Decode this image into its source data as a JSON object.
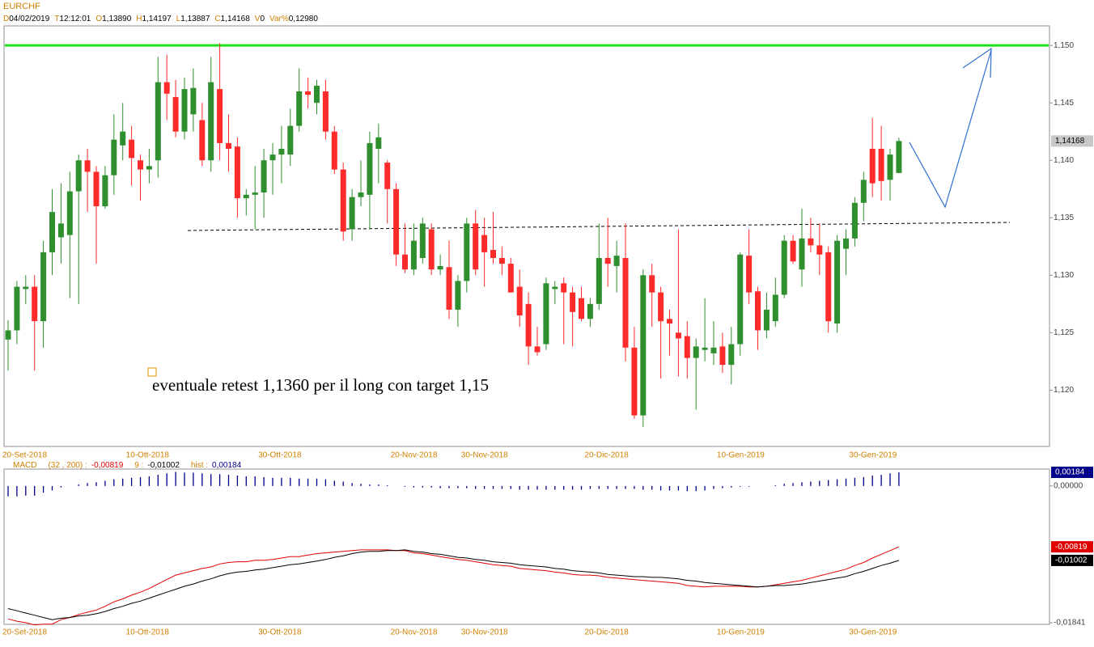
{
  "chart_data": [
    {
      "type": "candlestick",
      "title": "EURCHF",
      "header": [
        {
          "key": "D",
          "value": "04/02/2019"
        },
        {
          "key": "T",
          "value": "12:12:01"
        },
        {
          "key": "O",
          "value": "1,13890"
        },
        {
          "key": "H",
          "value": "1,14197"
        },
        {
          "key": "L",
          "value": "1,13887"
        },
        {
          "key": "C",
          "value": "1,14168"
        },
        {
          "key": "V",
          "value": "0"
        },
        {
          "key": "Var%",
          "value": "0,12980"
        }
      ],
      "annotation": "eventuale retest 1,1360 per il long con target 1,15",
      "categories": [
        "20-Set-2018",
        null,
        null,
        null,
        null,
        null,
        null,
        null,
        null,
        null,
        null,
        null,
        null,
        null,
        "10-Ott-2018",
        null,
        null,
        null,
        null,
        null,
        null,
        null,
        null,
        null,
        null,
        null,
        null,
        null,
        null,
        "30-Ott-2018",
        null,
        null,
        null,
        null,
        null,
        null,
        null,
        null,
        null,
        null,
        null,
        null,
        null,
        null,
        "20-Nov-2018",
        null,
        null,
        null,
        null,
        null,
        null,
        null,
        "30-Nov-2018",
        null,
        null,
        null,
        null,
        null,
        null,
        null,
        null,
        null,
        null,
        null,
        null,
        null,
        "20-Dic-2018",
        null,
        null,
        null,
        null,
        null,
        null,
        null,
        null,
        null,
        null,
        null,
        null,
        null,
        null,
        "10-Gen-2019",
        null,
        null,
        null,
        null,
        null,
        null,
        null,
        null,
        null,
        null,
        null,
        null,
        null,
        null,
        "30-Gen-2019",
        null,
        null,
        null,
        null,
        null
      ],
      "open": [
        1.1244,
        1.1252,
        1.1288,
        1.129,
        1.126,
        1.132,
        1.1333,
        1.1335,
        1.1373,
        1.14,
        1.139,
        1.136,
        1.1387,
        1.1413,
        1.1418,
        1.14,
        1.1392,
        1.14,
        1.1468,
        1.1455,
        1.1425,
        1.144,
        1.1435,
        1.14,
        1.1462,
        1.1415,
        1.1412,
        1.1367,
        1.137,
        1.1372,
        1.14,
        1.1405,
        1.1405,
        1.143,
        1.146,
        1.145,
        1.146,
        1.1425,
        1.1392,
        1.134,
        1.1368,
        1.137,
        1.141,
        1.1398,
        1.1375,
        1.1318,
        1.1305,
        1.1315,
        1.134,
        1.1305,
        1.1307,
        1.127,
        1.1295,
        1.1345,
        1.1335,
        1.1322,
        1.1315,
        1.131,
        1.129,
        1.1275,
        1.1238,
        1.124,
        1.1288,
        1.1293,
        1.1285,
        1.128,
        1.1262,
        1.1275,
        1.1315,
        1.1308,
        1.1315,
        1.1237,
        1.1178,
        1.13,
        1.1285,
        1.1262,
        1.125,
        1.1247,
        1.1228,
        1.1235,
        1.1232,
        1.1238,
        1.1222,
        1.124,
        1.1317,
        1.1286,
        1.1252,
        1.126,
        1.1283,
        1.133,
        1.1305,
        1.1332,
        1.1326,
        1.132,
        1.1258,
        1.1323,
        1.1332,
        1.1363,
        1.141,
        1.141,
        1.1383,
        1.1389
      ],
      "high": [
        1.1261,
        1.1295,
        1.13,
        1.13,
        1.133,
        1.1375,
        1.138,
        1.139,
        1.1405,
        1.141,
        1.1395,
        1.1395,
        1.144,
        1.145,
        1.143,
        1.1405,
        1.141,
        1.149,
        1.1492,
        1.147,
        1.1472,
        1.148,
        1.145,
        1.149,
        1.1502,
        1.144,
        1.142,
        1.1375,
        1.1395,
        1.141,
        1.1415,
        1.143,
        1.1445,
        1.148,
        1.1472,
        1.147,
        1.147,
        1.143,
        1.1398,
        1.1375,
        1.14,
        1.1425,
        1.1432,
        1.14,
        1.138,
        1.1345,
        1.1345,
        1.135,
        1.1345,
        1.1318,
        1.133,
        1.13,
        1.135,
        1.1357,
        1.135,
        1.1355,
        1.1325,
        1.1315,
        1.1305,
        1.1285,
        1.1255,
        1.1298,
        1.1295,
        1.1298,
        1.129,
        1.129,
        1.128,
        1.1345,
        1.135,
        1.133,
        1.1345,
        1.1255,
        1.1305,
        1.131,
        1.129,
        1.127,
        1.134,
        1.126,
        1.1245,
        1.128,
        1.126,
        1.125,
        1.1255,
        1.132,
        1.134,
        1.129,
        1.1285,
        1.1298,
        1.1335,
        1.1335,
        1.1358,
        1.135,
        1.1345,
        1.1325,
        1.1335,
        1.134,
        1.1368,
        1.139,
        1.1437,
        1.143,
        1.141,
        1.14197
      ],
      "low": [
        1.1217,
        1.124,
        1.1275,
        1.1217,
        1.1237,
        1.13,
        1.131,
        1.128,
        1.1275,
        1.1355,
        1.131,
        1.1358,
        1.137,
        1.14,
        1.1378,
        1.1365,
        1.138,
        1.1385,
        1.1435,
        1.142,
        1.1418,
        1.1425,
        1.1395,
        1.139,
        1.14,
        1.139,
        1.135,
        1.1352,
        1.134,
        1.135,
        1.137,
        1.138,
        1.1395,
        1.1425,
        1.1445,
        1.144,
        1.1418,
        1.1388,
        1.133,
        1.133,
        1.136,
        1.134,
        1.138,
        1.1345,
        1.1308,
        1.1302,
        1.13,
        1.131,
        1.13,
        1.13,
        1.1262,
        1.1255,
        1.1285,
        1.13,
        1.129,
        1.131,
        1.13,
        1.1285,
        1.1255,
        1.1222,
        1.123,
        1.1235,
        1.1275,
        1.124,
        1.1238,
        1.126,
        1.1255,
        1.127,
        1.129,
        1.1285,
        1.1225,
        1.1175,
        1.1168,
        1.1255,
        1.121,
        1.123,
        1.1212,
        1.121,
        1.1183,
        1.1225,
        1.1222,
        1.1215,
        1.1205,
        1.123,
        1.1275,
        1.1235,
        1.1245,
        1.1255,
        1.128,
        1.131,
        1.129,
        1.132,
        1.13,
        1.125,
        1.125,
        1.13,
        1.1325,
        1.1347,
        1.1368,
        1.1365,
        1.1365,
        1.13887
      ],
      "close": [
        1.1252,
        1.129,
        1.129,
        1.126,
        1.132,
        1.1355,
        1.1345,
        1.1373,
        1.14,
        1.139,
        1.136,
        1.1387,
        1.1418,
        1.1425,
        1.1402,
        1.1392,
        1.1395,
        1.1468,
        1.1458,
        1.1425,
        1.1462,
        1.1463,
        1.14,
        1.1468,
        1.1415,
        1.141,
        1.1367,
        1.137,
        1.1372,
        1.14,
        1.1405,
        1.141,
        1.143,
        1.146,
        1.1457,
        1.1465,
        1.1425,
        1.1392,
        1.1338,
        1.1368,
        1.1372,
        1.1415,
        1.142,
        1.1375,
        1.1318,
        1.1305,
        1.133,
        1.1345,
        1.1305,
        1.1308,
        1.127,
        1.1295,
        1.1345,
        1.1305,
        1.132,
        1.1315,
        1.131,
        1.1285,
        1.1265,
        1.1238,
        1.1233,
        1.1293,
        1.129,
        1.1285,
        1.1268,
        1.1262,
        1.1275,
        1.1315,
        1.131,
        1.1317,
        1.1237,
        1.1178,
        1.13,
        1.1285,
        1.126,
        1.1258,
        1.1245,
        1.1228,
        1.1238,
        1.1237,
        1.1237,
        1.1222,
        1.124,
        1.1318,
        1.1285,
        1.1252,
        1.127,
        1.1283,
        1.133,
        1.1312,
        1.1332,
        1.1326,
        1.1318,
        1.126,
        1.133,
        1.1332,
        1.1363,
        1.1383,
        1.138,
        1.1382,
        1.1405,
        1.14168
      ],
      "last_label": "1,14168",
      "up_color": "#2f8f2f",
      "down_color": "#ff2a2a",
      "hline": {
        "value": 1.15,
        "color": "#1fe01f"
      },
      "ylim": [
        1.1151,
        1.1517
      ],
      "yticks": [
        {
          "value": 1.15,
          "label": "1,150"
        },
        {
          "value": 1.145,
          "label": "1,145"
        },
        {
          "value": 1.14,
          "label": "1,140"
        },
        {
          "value": 1.135,
          "label": "1,135"
        },
        {
          "value": 1.13,
          "label": "1,130"
        },
        {
          "value": 1.125,
          "label": "1,125"
        },
        {
          "value": 1.12,
          "label": "1,120"
        }
      ]
    },
    {
      "type": "macd",
      "title": "MACD",
      "series": [
        {
          "name": "(32 , 200) :",
          "color": "#e00000",
          "value_label": "-0,00819",
          "values": [
            -0.0179,
            -0.0182,
            -0.0184,
            -0.0187,
            -0.0186,
            -0.0186,
            -0.018,
            -0.0177,
            -0.0173,
            -0.017,
            -0.0167,
            -0.0162,
            -0.0156,
            -0.0152,
            -0.0147,
            -0.0143,
            -0.0138,
            -0.0132,
            -0.0126,
            -0.012,
            -0.0117,
            -0.0114,
            -0.0111,
            -0.0109,
            -0.0105,
            -0.0103,
            -0.0102,
            -0.0102,
            -0.01,
            -0.01,
            -0.0099,
            -0.0097,
            -0.0095,
            -0.0095,
            -0.0093,
            -0.0091,
            -0.009,
            -0.0089,
            -0.0088,
            -0.0087,
            -0.0086,
            -0.0086,
            -0.0086,
            -0.0086,
            -0.0087,
            -0.0087,
            -0.009,
            -0.0091,
            -0.0093,
            -0.0095,
            -0.0097,
            -0.0099,
            -0.01,
            -0.0102,
            -0.0104,
            -0.0106,
            -0.0107,
            -0.0108,
            -0.0111,
            -0.0112,
            -0.0113,
            -0.0114,
            -0.0116,
            -0.0117,
            -0.0119,
            -0.012,
            -0.012,
            -0.0121,
            -0.0123,
            -0.0124,
            -0.0125,
            -0.0126,
            -0.0127,
            -0.0128,
            -0.0129,
            -0.013,
            -0.0131,
            -0.0134,
            -0.0135,
            -0.0136,
            -0.0135,
            -0.0135,
            -0.0135,
            -0.0135,
            -0.0136,
            -0.0136,
            -0.0135,
            -0.0133,
            -0.0131,
            -0.0129,
            -0.0127,
            -0.0124,
            -0.0121,
            -0.0118,
            -0.0115,
            -0.0112,
            -0.0107,
            -0.0103,
            -0.0097,
            -0.0092,
            -0.0087,
            -0.00819
          ]
        },
        {
          "name": "9 :",
          "color": "#000000",
          "value_label": "-0,01002",
          "values": [
            -0.0165,
            -0.0168,
            -0.0171,
            -0.0174,
            -0.0177,
            -0.018,
            -0.0178,
            -0.0177,
            -0.0175,
            -0.0174,
            -0.0172,
            -0.0169,
            -0.0165,
            -0.0162,
            -0.0158,
            -0.0155,
            -0.0151,
            -0.0147,
            -0.0143,
            -0.0139,
            -0.0135,
            -0.0132,
            -0.0128,
            -0.0125,
            -0.0121,
            -0.0118,
            -0.0116,
            -0.0115,
            -0.0113,
            -0.0112,
            -0.011,
            -0.0108,
            -0.0106,
            -0.0105,
            -0.0103,
            -0.0101,
            -0.0099,
            -0.0096,
            -0.0094,
            -0.0091,
            -0.0089,
            -0.0088,
            -0.0088,
            -0.0087,
            -0.0087,
            -0.0086,
            -0.0088,
            -0.0089,
            -0.0091,
            -0.0092,
            -0.0094,
            -0.0096,
            -0.0097,
            -0.0099,
            -0.01,
            -0.0102,
            -0.0103,
            -0.0104,
            -0.0106,
            -0.0107,
            -0.0108,
            -0.0109,
            -0.0111,
            -0.0112,
            -0.0114,
            -0.0115,
            -0.0116,
            -0.0117,
            -0.0119,
            -0.012,
            -0.0121,
            -0.0122,
            -0.0122,
            -0.0123,
            -0.0123,
            -0.0124,
            -0.0125,
            -0.0127,
            -0.0128,
            -0.013,
            -0.0131,
            -0.0132,
            -0.0133,
            -0.0134,
            -0.0135,
            -0.0136,
            -0.0135,
            -0.0134,
            -0.0134,
            -0.0133,
            -0.0132,
            -0.013,
            -0.0128,
            -0.0126,
            -0.0124,
            -0.0122,
            -0.0118,
            -0.0115,
            -0.0111,
            -0.0107,
            -0.0104,
            -0.01002
          ]
        },
        {
          "name": "hist :",
          "color": "#00008b",
          "value_label": "0,00184",
          "kind": "histogram",
          "values": [
            -0.0014,
            -0.0014,
            -0.0013,
            -0.0013,
            -0.0009,
            -0.0006,
            -0.0002,
            0,
            0.0002,
            0.0004,
            0.0005,
            0.0007,
            0.0009,
            0.001,
            0.0011,
            0.0012,
            0.0013,
            0.0015,
            0.0017,
            0.0019,
            0.0018,
            0.0018,
            0.0017,
            0.0016,
            0.0016,
            0.0015,
            0.0014,
            0.0013,
            0.0013,
            0.0012,
            0.0011,
            0.0011,
            0.0011,
            0.001,
            0.001,
            0.001,
            0.0009,
            0.0007,
            0.0006,
            0.0004,
            0.0003,
            0.0002,
            0.0002,
            0.0001,
            0,
            -0.0001,
            -0.0002,
            -0.0002,
            -0.0002,
            -0.0003,
            -0.0003,
            -0.0003,
            -0.0003,
            -0.0004,
            -0.0004,
            -0.0004,
            -0.0004,
            -0.0004,
            -0.0005,
            -0.0005,
            -0.0005,
            -0.0005,
            -0.0005,
            -0.0005,
            -0.0005,
            -0.0005,
            -0.0004,
            -0.0004,
            -0.0004,
            -0.0004,
            -0.0004,
            -0.0004,
            -0.0005,
            -0.0005,
            -0.0006,
            -0.0006,
            -0.0006,
            -0.0007,
            -0.0007,
            -0.0006,
            -0.0004,
            -0.0003,
            -0.0002,
            -0.0001,
            -0.0001,
            0,
            0,
            0.0001,
            0.0003,
            0.0004,
            0.0005,
            0.0006,
            0.0007,
            0.0008,
            0.0009,
            0.001,
            0.0011,
            0.0012,
            0.0014,
            0.0015,
            0.0017,
            0.00184
          ]
        }
      ],
      "ylim": [
        -0.01841,
        0.00184
      ],
      "yticks": [
        {
          "value": 0,
          "label": "0,00000"
        },
        {
          "value": -0.01841,
          "label": "-0,01841"
        }
      ]
    }
  ]
}
